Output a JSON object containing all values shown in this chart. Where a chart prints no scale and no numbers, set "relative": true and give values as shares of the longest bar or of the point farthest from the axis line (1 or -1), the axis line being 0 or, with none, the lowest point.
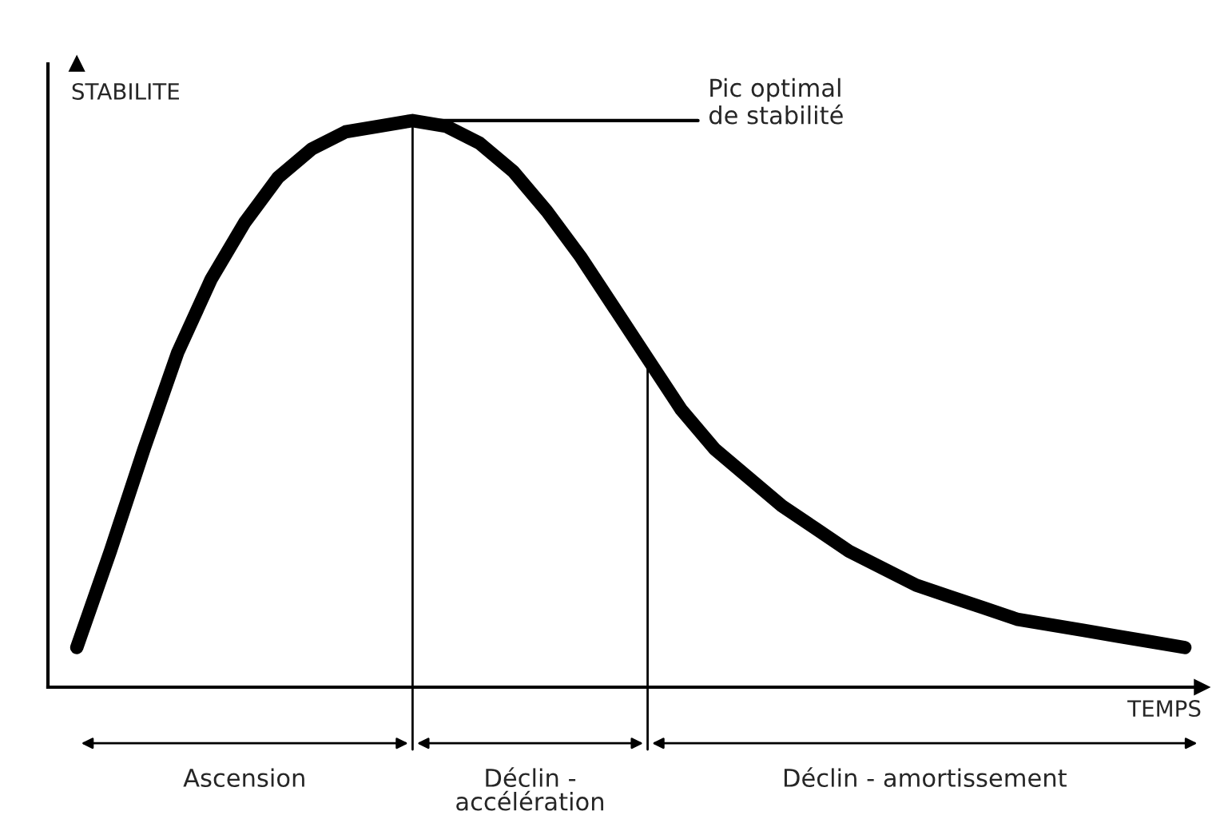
{
  "chart_data": {
    "type": "line",
    "relative": true,
    "ylabel": "STABILITE",
    "xlabel": "TEMPS",
    "categories": [
      null,
      null,
      null,
      null,
      null,
      null,
      null,
      null,
      null,
      null,
      null,
      null,
      null,
      null,
      null,
      null,
      null,
      null,
      null,
      null,
      null,
      null,
      null,
      null,
      null,
      null,
      null,
      null,
      null,
      null,
      null,
      null,
      null,
      null
    ],
    "series": [
      {
        "color": "#000000",
        "values": [
          0.07,
          0.24,
          0.42,
          0.59,
          0.72,
          0.82,
          0.9,
          0.95,
          0.98,
          0.99,
          1,
          0.99,
          0.96,
          0.91,
          0.84,
          0.76,
          0.67,
          0.58,
          0.49,
          0.42,
          0.37,
          0.32,
          0.28,
          0.24,
          0.21,
          0.18,
          0.16,
          0.14,
          0.12,
          0.11,
          0.1,
          0.09,
          0.08,
          0.07
        ]
      }
    ],
    "annotations": [
      "Pic optimal\nde stabilité",
      "Ascension",
      "Déclin -\naccélération",
      "Déclin - amortissement"
    ],
    "legend": false,
    "marker": "none",
    "line_style": "solid"
  }
}
